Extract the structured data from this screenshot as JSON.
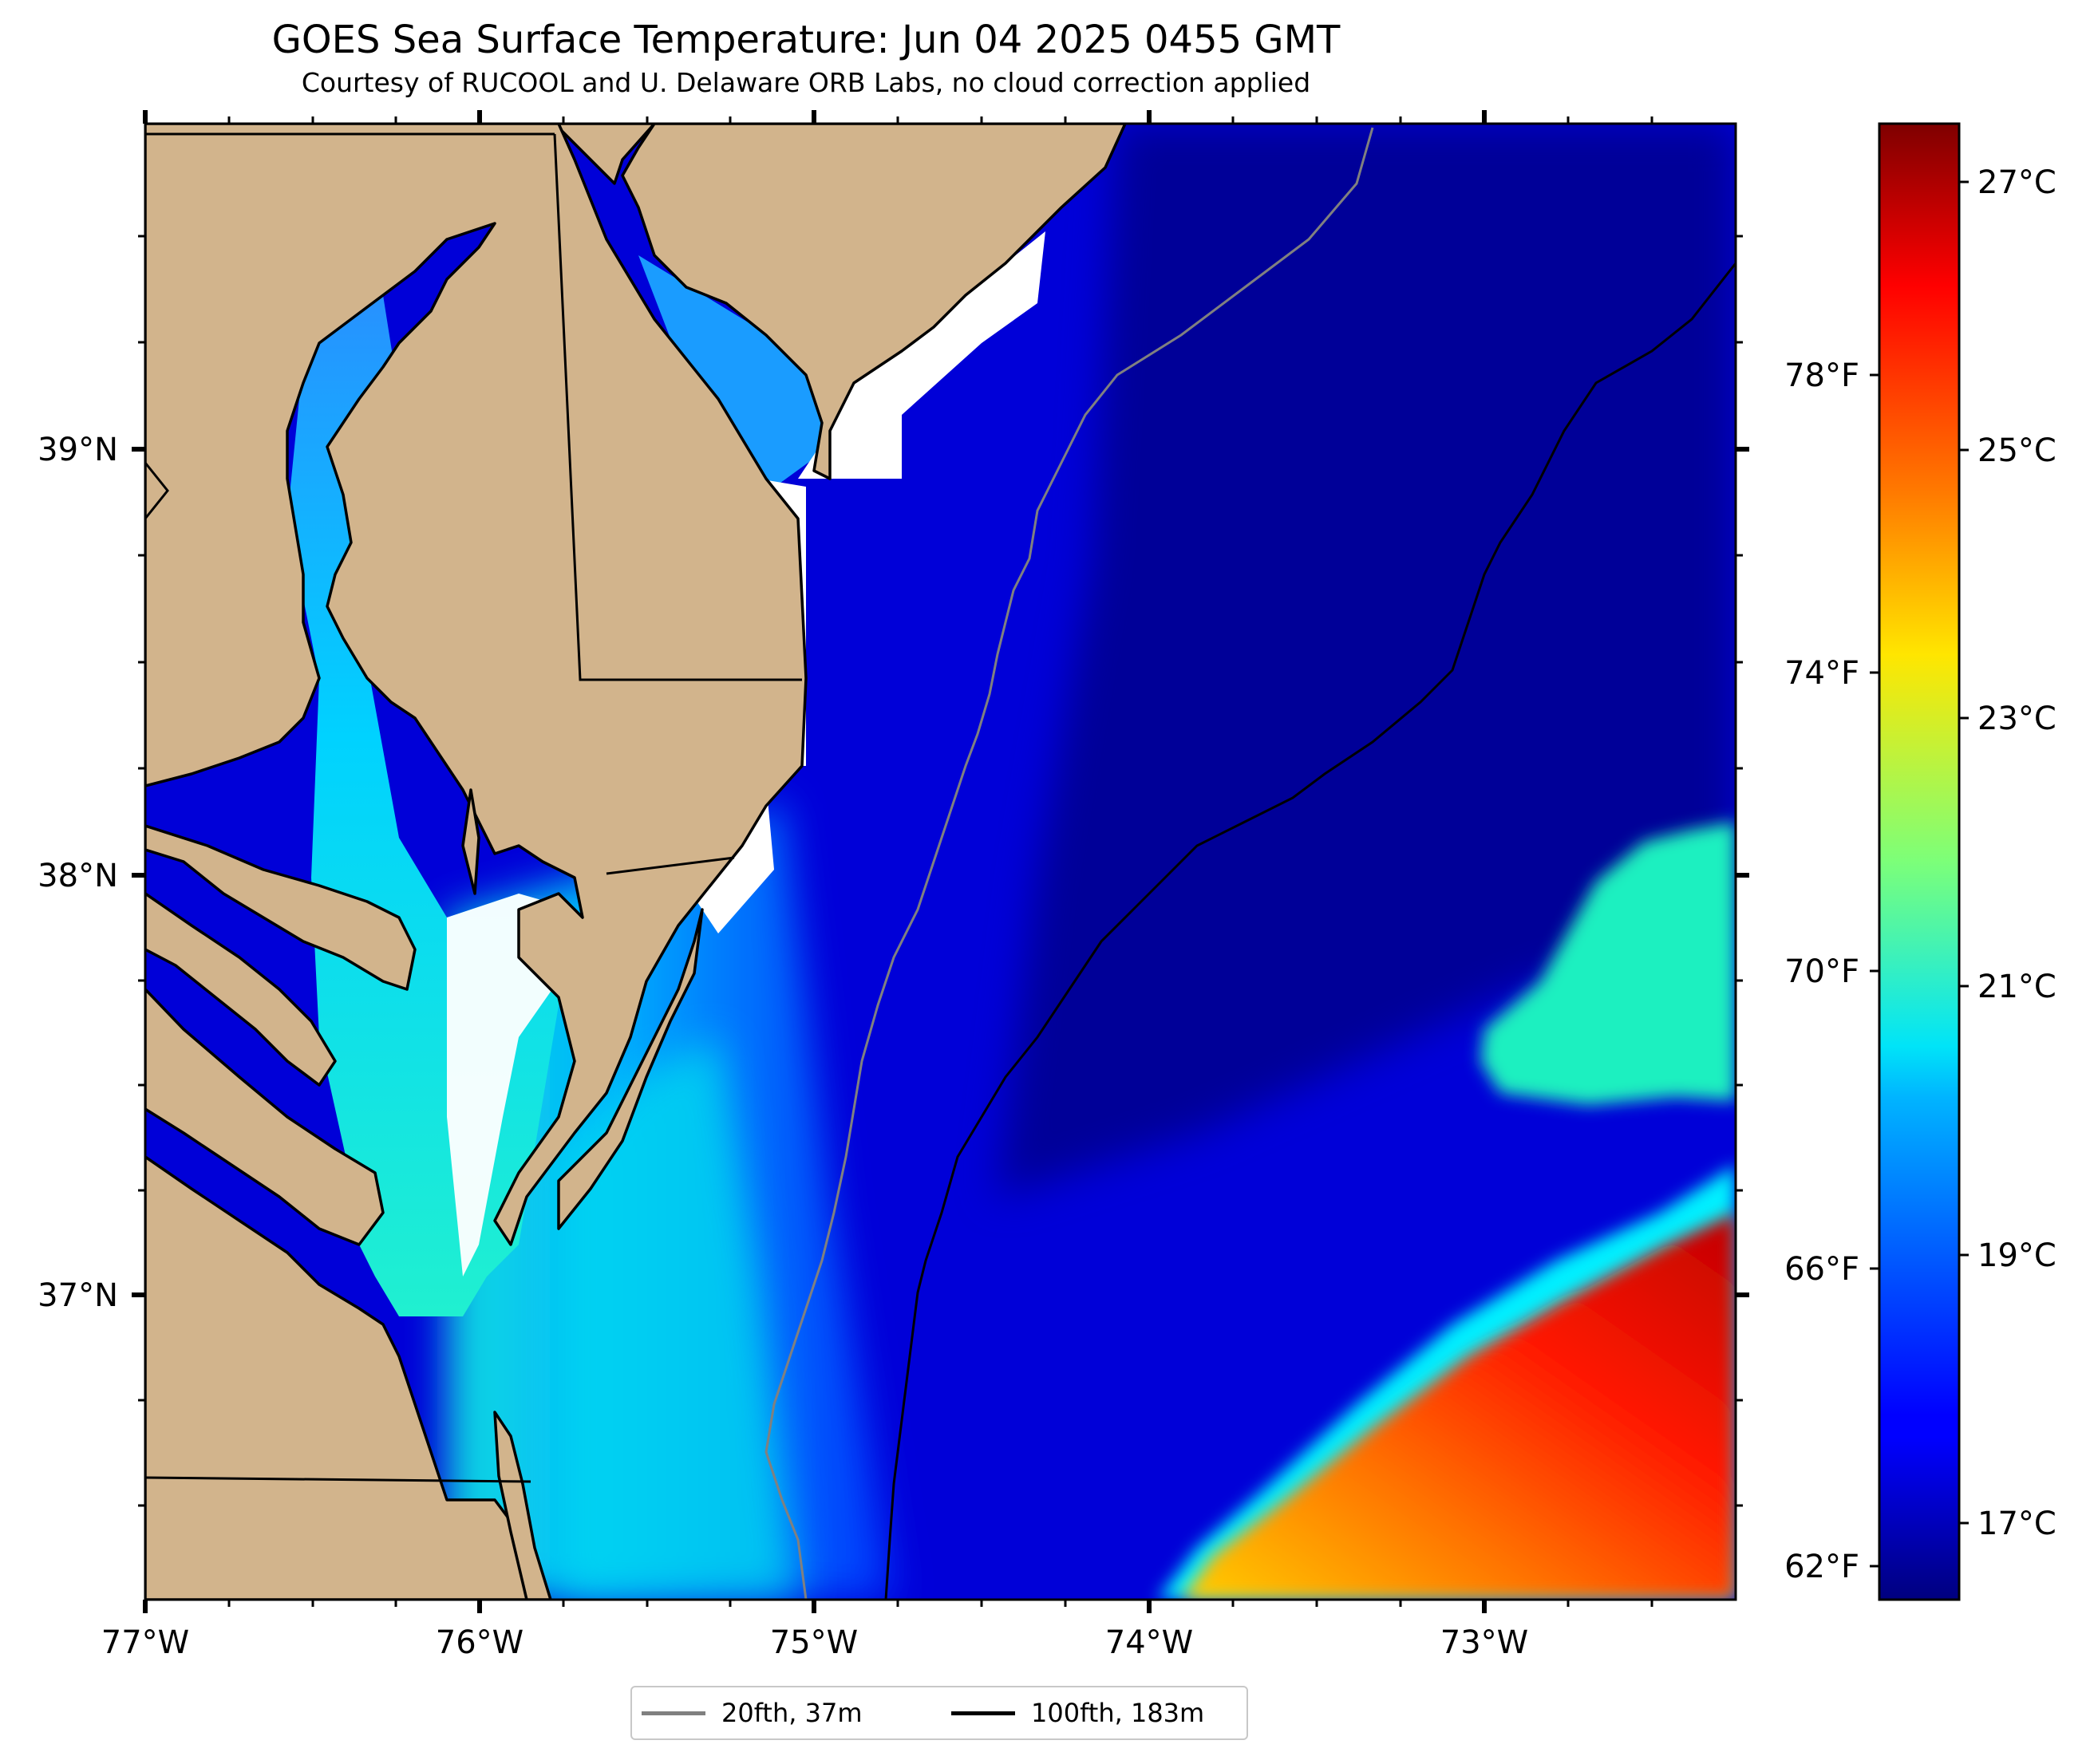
{
  "title": "GOES Sea Surface Temperature: Jun 04 2025 0455 GMT",
  "subtitle": "Courtesy of RUCOOL and U. Delaware ORB Labs, no cloud correction applied",
  "map": {
    "lon_range": [
      -77.0,
      -72.25
    ],
    "lat_range": [
      36.3,
      39.75
    ],
    "lon_ticks": [
      "77°W",
      "76°W",
      "75°W",
      "74°W",
      "73°W"
    ],
    "lat_ticks": [
      "39°N",
      "38°N",
      "37°N"
    ],
    "land_color": "#d2b48c",
    "no_data_color": "#ffffff"
  },
  "colorbar": {
    "colormap": "jet",
    "range_c": [
      16.5,
      27.5
    ],
    "celsius_ticks": [
      "17°C",
      "19°C",
      "21°C",
      "23°C",
      "25°C",
      "27°C"
    ],
    "fahrenheit_ticks": [
      "62°F",
      "66°F",
      "70°F",
      "74°F",
      "78°F"
    ]
  },
  "legend": {
    "items": [
      {
        "label": "20fth, 37m",
        "color": "#808080"
      },
      {
        "label": "100fth, 183m",
        "color": "#000000"
      }
    ]
  }
}
